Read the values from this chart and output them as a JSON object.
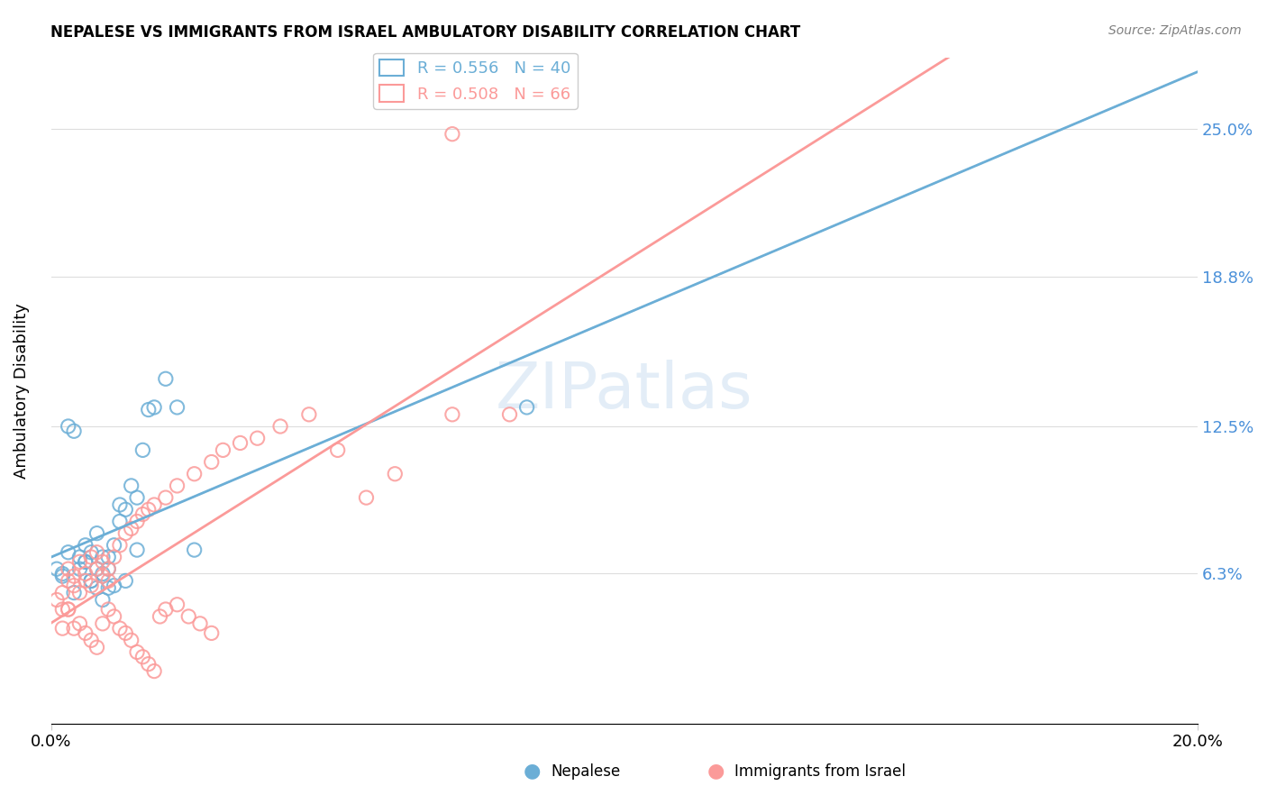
{
  "title": "NEPALESE VS IMMIGRANTS FROM ISRAEL AMBULATORY DISABILITY CORRELATION CHART",
  "source": "Source: ZipAtlas.com",
  "xlabel_bottom": "",
  "ylabel": "Ambulatory Disability",
  "xmin": 0.0,
  "xmax": 0.2,
  "ymin": 0.0,
  "ymax": 0.28,
  "yticks": [
    0.0,
    0.063,
    0.125,
    0.188,
    0.25
  ],
  "ytick_labels": [
    "",
    "6.3%",
    "12.5%",
    "18.8%",
    "25.0%"
  ],
  "xtick_labels": [
    "0.0%",
    "20.0%"
  ],
  "legend_r1": "R = 0.556",
  "legend_n1": "N = 40",
  "legend_r2": "R = 0.508",
  "legend_n2": "N = 66",
  "color_nepalese": "#6baed6",
  "color_israel": "#fb9a99",
  "trendline_nepalese_color": "#6baed6",
  "trendline_israel_color": "#fb9a99",
  "watermark": "ZIPatlas",
  "nepalese_x": [
    0.002,
    0.003,
    0.004,
    0.005,
    0.005,
    0.006,
    0.006,
    0.007,
    0.007,
    0.008,
    0.008,
    0.009,
    0.009,
    0.01,
    0.01,
    0.011,
    0.012,
    0.012,
    0.013,
    0.014,
    0.015,
    0.016,
    0.017,
    0.018,
    0.02,
    0.022,
    0.025,
    0.003,
    0.004,
    0.006,
    0.007,
    0.008,
    0.009,
    0.01,
    0.011,
    0.013,
    0.015,
    0.083,
    0.001,
    0.002
  ],
  "nepalese_y": [
    0.062,
    0.072,
    0.055,
    0.065,
    0.07,
    0.068,
    0.075,
    0.06,
    0.072,
    0.065,
    0.08,
    0.07,
    0.063,
    0.065,
    0.07,
    0.075,
    0.085,
    0.092,
    0.09,
    0.1,
    0.095,
    0.115,
    0.132,
    0.133,
    0.145,
    0.133,
    0.073,
    0.125,
    0.123,
    0.068,
    0.06,
    0.057,
    0.052,
    0.057,
    0.058,
    0.06,
    0.073,
    0.133,
    0.065,
    0.063
  ],
  "israel_x": [
    0.001,
    0.002,
    0.002,
    0.003,
    0.003,
    0.004,
    0.004,
    0.005,
    0.005,
    0.006,
    0.006,
    0.007,
    0.007,
    0.008,
    0.008,
    0.009,
    0.009,
    0.01,
    0.01,
    0.011,
    0.012,
    0.013,
    0.014,
    0.015,
    0.016,
    0.017,
    0.018,
    0.02,
    0.022,
    0.025,
    0.028,
    0.03,
    0.033,
    0.036,
    0.04,
    0.045,
    0.05,
    0.055,
    0.06,
    0.07,
    0.003,
    0.004,
    0.005,
    0.006,
    0.007,
    0.008,
    0.009,
    0.01,
    0.011,
    0.012,
    0.013,
    0.014,
    0.015,
    0.016,
    0.017,
    0.018,
    0.019,
    0.02,
    0.022,
    0.024,
    0.026,
    0.028,
    0.07,
    0.08,
    0.002,
    0.003
  ],
  "israel_y": [
    0.052,
    0.048,
    0.055,
    0.06,
    0.065,
    0.058,
    0.062,
    0.055,
    0.068,
    0.06,
    0.063,
    0.058,
    0.07,
    0.065,
    0.072,
    0.068,
    0.062,
    0.06,
    0.065,
    0.07,
    0.075,
    0.08,
    0.082,
    0.085,
    0.088,
    0.09,
    0.092,
    0.095,
    0.1,
    0.105,
    0.11,
    0.115,
    0.118,
    0.12,
    0.125,
    0.13,
    0.115,
    0.095,
    0.105,
    0.13,
    0.048,
    0.04,
    0.042,
    0.038,
    0.035,
    0.032,
    0.042,
    0.048,
    0.045,
    0.04,
    0.038,
    0.035,
    0.03,
    0.028,
    0.025,
    0.022,
    0.045,
    0.048,
    0.05,
    0.045,
    0.042,
    0.038,
    0.248,
    0.13,
    0.04,
    0.048
  ]
}
